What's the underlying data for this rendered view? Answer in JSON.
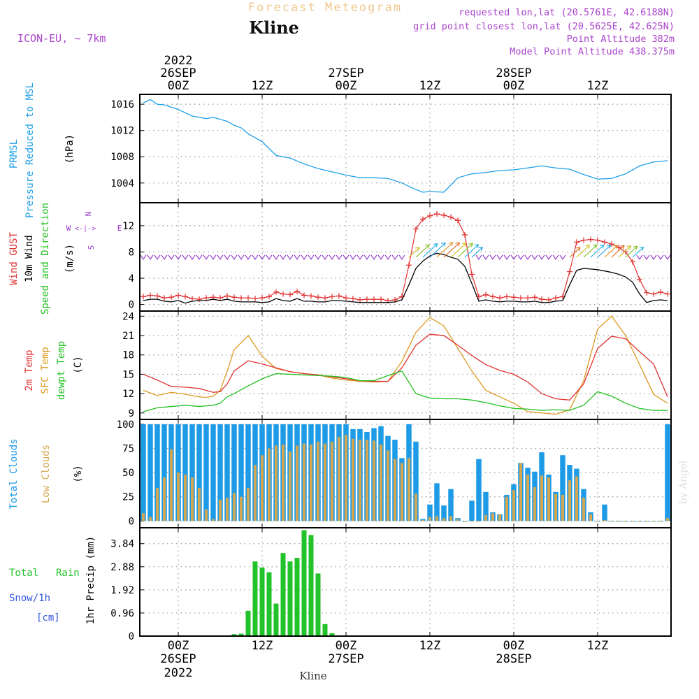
{
  "header": {
    "title": "Forecast Meteogram",
    "location": "Kline",
    "model": "ICON-EU, ~ 7km",
    "requested": "requested lon,lat (20.5761E, 42.6188N)",
    "gridpoint": "grid point closest lon,lat (20.5625E, 42.625N)",
    "point_alt": "Point Altitude 382m",
    "model_alt": "Model Point Altitude 438.375m",
    "footer": "Kline",
    "credit": "by Angel"
  },
  "colors": {
    "pressure": "#1fa0e8",
    "gust": "#e03030",
    "wind": "#000000",
    "wind_dir": "#9a3ad0",
    "temp": "#e03030",
    "sfc": "#dd9a20",
    "dewpt": "#20c020",
    "cloud_total": "#1e9be6",
    "cloud_low": "#d3a752",
    "rain": "#22c22a",
    "snow": "#3355dd",
    "title": "#f0c890",
    "info": "#aa44cc"
  },
  "time_axis": {
    "top_year": "2022",
    "labels": [
      {
        "t": 0,
        "hour": "00Z",
        "date": "26SEP",
        "year": "2022"
      },
      {
        "t": 12,
        "hour": "12Z",
        "date": "",
        "year": ""
      },
      {
        "t": 24,
        "hour": "00Z",
        "date": "27SEP",
        "year": ""
      },
      {
        "t": 36,
        "hour": "12Z",
        "date": "",
        "year": ""
      },
      {
        "t": 48,
        "hour": "00Z",
        "date": "28SEP",
        "year": ""
      },
      {
        "t": 60,
        "hour": "12Z",
        "date": "",
        "year": ""
      }
    ],
    "range_hours": [
      -5.5,
      70.5
    ]
  },
  "chart_data": [
    {
      "type": "line",
      "panel": "pressure",
      "ylabel": "(hPa)",
      "side_labels": [
        "PRMSL",
        "Pressure Reduced to MSL"
      ],
      "yticks": [
        1004,
        1008,
        1012,
        1016
      ],
      "ylim": [
        1001,
        1017.5
      ],
      "grid": true,
      "x_hours": [
        -5,
        -4,
        -3,
        -2,
        0,
        2,
        3,
        4,
        5,
        6,
        7,
        8,
        9,
        10,
        12,
        14,
        16,
        18,
        20,
        22,
        24,
        26,
        28,
        30,
        32,
        34,
        35,
        36,
        38,
        40,
        42,
        44,
        46,
        48,
        50,
        52,
        54,
        56,
        58,
        60,
        62,
        64,
        66,
        68,
        70
      ],
      "values": [
        1016.2,
        1016.7,
        1016.0,
        1015.9,
        1015.2,
        1014.2,
        1014.0,
        1013.8,
        1014.0,
        1013.7,
        1013.4,
        1012.8,
        1012.4,
        1011.5,
        1010.3,
        1008.2,
        1007.8,
        1006.9,
        1006.2,
        1005.7,
        1005.2,
        1004.8,
        1004.8,
        1004.7,
        1004.0,
        1003.0,
        1002.6,
        1002.7,
        1002.6,
        1004.8,
        1005.4,
        1005.6,
        1005.9,
        1006.0,
        1006.3,
        1006.6,
        1006.3,
        1006.1,
        1005.3,
        1004.6,
        1004.7,
        1005.4,
        1006.6,
        1007.2,
        1007.4
      ],
      "series": [
        {
          "name": "PRMSL",
          "values_ref": "values"
        }
      ]
    },
    {
      "type": "line",
      "panel": "wind",
      "ylabel": "(m/s)",
      "side_labels": [
        "Wind GUST",
        "10m Wind",
        "Speed and Direction"
      ],
      "compass": [
        "N",
        "W",
        "E",
        "S"
      ],
      "yticks": [
        0,
        4,
        8,
        12
      ],
      "ylim": [
        -1,
        15.5
      ],
      "grid": true,
      "x_hours": [
        -5,
        -4,
        -3,
        -2,
        -1,
        0,
        1,
        2,
        3,
        4,
        5,
        6,
        7,
        8,
        9,
        10,
        11,
        12,
        13,
        14,
        15,
        16,
        17,
        18,
        19,
        20,
        21,
        22,
        23,
        24,
        25,
        26,
        27,
        28,
        29,
        30,
        31,
        32,
        33,
        34,
        35,
        36,
        37,
        38,
        39,
        40,
        41,
        42,
        43,
        44,
        45,
        46,
        47,
        48,
        49,
        50,
        51,
        52,
        53,
        54,
        55,
        56,
        57,
        58,
        59,
        60,
        61,
        62,
        63,
        64,
        65,
        66,
        67,
        68,
        69,
        70
      ],
      "series": [
        {
          "name": "Wind GUST",
          "values": [
            1.2,
            1.4,
            1.3,
            1.0,
            1.1,
            1.4,
            1.2,
            0.9,
            0.8,
            1.0,
            1.1,
            1.0,
            1.3,
            1.1,
            1.0,
            1.0,
            0.9,
            1.0,
            1.2,
            1.9,
            1.6,
            1.5,
            2.0,
            1.4,
            1.3,
            1.1,
            1.0,
            1.2,
            1.3,
            1.0,
            0.9,
            0.7,
            0.8,
            0.8,
            0.8,
            0.6,
            0.7,
            1.2,
            6.0,
            11.5,
            13.0,
            13.5,
            13.8,
            13.6,
            13.3,
            12.8,
            10.6,
            4.6,
            1.2,
            1.5,
            1.2,
            1.0,
            1.2,
            1.1,
            1.0,
            1.0,
            1.1,
            0.8,
            0.7,
            1.0,
            1.2,
            5.0,
            9.5,
            9.8,
            9.9,
            9.8,
            9.5,
            9.2,
            8.7,
            8.0,
            6.5,
            3.8,
            1.8,
            1.6,
            1.9,
            1.6
          ]
        },
        {
          "name": "10m Wind",
          "values": [
            0.6,
            0.8,
            0.8,
            0.5,
            0.4,
            0.6,
            0.2,
            0.5,
            0.6,
            0.6,
            0.8,
            0.6,
            0.8,
            0.5,
            0.4,
            0.4,
            0.4,
            0.3,
            0.4,
            0.9,
            0.6,
            0.5,
            0.9,
            0.5,
            0.5,
            0.4,
            0.4,
            0.6,
            0.6,
            0.5,
            0.4,
            0.3,
            0.3,
            0.3,
            0.3,
            0.3,
            0.4,
            0.7,
            3.0,
            5.5,
            6.6,
            7.4,
            7.8,
            7.6,
            7.2,
            6.9,
            5.8,
            3.2,
            0.5,
            0.7,
            0.5,
            0.4,
            0.5,
            0.5,
            0.4,
            0.4,
            0.5,
            0.3,
            0.3,
            0.5,
            0.6,
            3.0,
            5.2,
            5.5,
            5.4,
            5.3,
            5.1,
            4.9,
            4.6,
            4.2,
            3.4,
            1.6,
            0.3,
            0.6,
            0.7,
            0.6
          ]
        },
        {
          "name": "Speed and Direction",
          "arrow_level": 7.2
        }
      ]
    },
    {
      "type": "line",
      "panel": "temperature",
      "ylabel": "(C)",
      "side_labels": [
        "2m Temp",
        "SFC Temp",
        "dewpt Temp"
      ],
      "yticks": [
        9,
        12,
        15,
        18,
        21,
        24
      ],
      "ylim": [
        8,
        24.8
      ],
      "grid": true,
      "x_hours": [
        -5,
        -3,
        -1,
        1,
        3,
        4,
        5,
        6,
        7,
        8,
        10,
        12,
        14,
        16,
        18,
        20,
        22,
        24,
        26,
        28,
        30,
        32,
        34,
        36,
        38,
        40,
        42,
        44,
        46,
        48,
        50,
        52,
        54,
        56,
        58,
        60,
        62,
        64,
        66,
        68,
        70
      ],
      "series": [
        {
          "name": "2m Temp",
          "values": [
            15.0,
            14.1,
            13.1,
            13.0,
            12.8,
            12.5,
            12.2,
            12.3,
            13.5,
            15.5,
            17.1,
            16.6,
            16.0,
            15.4,
            15.1,
            14.9,
            14.6,
            14.3,
            14.0,
            13.9,
            13.9,
            16.0,
            19.5,
            21.2,
            21.0,
            19.5,
            17.9,
            16.5,
            15.6,
            15.0,
            13.8,
            12.0,
            11.2,
            11.0,
            13.5,
            19.0,
            20.9,
            20.5,
            18.5,
            16.6,
            11.5
          ]
        },
        {
          "name": "SFC Temp",
          "values": [
            12.5,
            11.7,
            12.2,
            11.9,
            11.5,
            11.4,
            11.6,
            12.5,
            15.5,
            18.8,
            21.0,
            17.8,
            15.9,
            15.4,
            15.1,
            14.9,
            14.4,
            14.1,
            13.9,
            13.8,
            13.9,
            17.0,
            21.5,
            23.8,
            22.5,
            19.0,
            15.5,
            12.5,
            11.5,
            10.5,
            9.2,
            9.0,
            8.8,
            9.5,
            14.0,
            22.0,
            24.0,
            21.0,
            16.5,
            11.9,
            10.5
          ]
        },
        {
          "name": "dewpt Temp",
          "values": [
            9.2,
            9.8,
            10.0,
            10.2,
            10.0,
            10.1,
            10.2,
            10.5,
            11.5,
            12.0,
            13.2,
            14.3,
            15.1,
            15.0,
            14.9,
            14.8,
            14.7,
            14.5,
            14.0,
            14.0,
            14.8,
            15.5,
            12.0,
            11.3,
            11.2,
            11.2,
            11.0,
            10.6,
            10.1,
            9.7,
            9.6,
            9.4,
            9.5,
            9.4,
            10.2,
            12.3,
            11.6,
            10.5,
            9.7,
            9.4,
            9.4
          ]
        }
      ]
    },
    {
      "type": "bar",
      "panel": "clouds",
      "ylabel": "(%)",
      "side_labels": [
        "Total Clouds",
        "Low Clouds"
      ],
      "yticks": [
        0,
        25,
        50,
        75,
        100
      ],
      "ylim": [
        -7,
        105
      ],
      "grid": true,
      "x_hours": [
        -5,
        -4,
        -3,
        -2,
        -1,
        0,
        1,
        2,
        3,
        4,
        5,
        6,
        7,
        8,
        9,
        10,
        11,
        12,
        13,
        14,
        15,
        16,
        17,
        18,
        19,
        20,
        21,
        22,
        23,
        24,
        25,
        26,
        27,
        28,
        29,
        30,
        31,
        32,
        33,
        34,
        35,
        36,
        37,
        38,
        39,
        40,
        41,
        42,
        43,
        44,
        45,
        46,
        47,
        48,
        49,
        50,
        51,
        52,
        53,
        54,
        55,
        56,
        57,
        58,
        59,
        60,
        61,
        62,
        63,
        64,
        65,
        66,
        67,
        68,
        69,
        70
      ],
      "series": [
        {
          "name": "Total Clouds",
          "values": [
            100,
            100,
            100,
            100,
            100,
            100,
            100,
            100,
            100,
            100,
            100,
            100,
            100,
            100,
            100,
            100,
            100,
            100,
            100,
            100,
            100,
            100,
            100,
            100,
            100,
            100,
            100,
            100,
            100,
            100,
            95,
            95,
            92,
            96,
            98,
            88,
            84,
            65,
            100,
            82,
            2,
            17,
            39,
            16,
            33,
            3,
            0,
            21,
            64,
            30,
            9,
            7,
            27,
            38,
            60,
            55,
            51,
            71,
            48,
            30,
            68,
            58,
            54,
            33,
            9,
            0,
            17,
            0,
            0,
            0,
            0,
            0,
            0,
            0,
            0,
            100
          ]
        },
        {
          "name": "Low Clouds",
          "values": [
            8,
            4,
            34,
            45,
            74,
            50,
            48,
            45,
            34,
            12,
            2,
            22,
            24,
            29,
            25,
            34,
            58,
            68,
            75,
            78,
            79,
            72,
            78,
            80,
            79,
            82,
            80,
            82,
            87,
            89,
            85,
            84,
            84,
            83,
            79,
            73,
            64,
            60,
            65,
            28,
            1,
            4,
            5,
            3,
            5,
            2,
            0,
            0,
            0,
            6,
            8,
            7,
            25,
            32,
            60,
            48,
            35,
            47,
            45,
            28,
            27,
            42,
            46,
            24,
            7,
            0,
            1,
            0,
            0,
            0,
            0,
            0,
            0,
            0,
            0,
            3
          ]
        }
      ]
    },
    {
      "type": "bar",
      "panel": "precipitation",
      "ylabel": "1hr Precip (mm)",
      "side_labels": [
        "Total",
        "Rain",
        "Snow/1h",
        "[cm]"
      ],
      "yticks": [
        0,
        0.96,
        1.92,
        2.88,
        3.84
      ],
      "ytick_labels": [
        "0",
        "0.96",
        "1.92",
        "2.88",
        "3.84"
      ],
      "ylim": [
        0,
        4.5
      ],
      "grid": true,
      "x_hours": [
        7,
        8,
        9,
        10,
        11,
        12,
        13,
        14,
        15,
        16,
        17,
        18,
        19,
        20,
        21,
        22,
        23,
        24,
        25
      ],
      "series": [
        {
          "name": "Total Rain",
          "values": [
            0.0,
            0.08,
            0.1,
            1.05,
            3.1,
            2.85,
            2.65,
            1.35,
            3.45,
            3.1,
            3.25,
            4.4,
            4.2,
            2.6,
            0.5,
            0.12,
            0,
            0,
            0
          ]
        },
        {
          "name": "Snow/1h",
          "values": [
            0,
            0,
            0,
            0,
            0,
            0,
            0,
            0,
            0,
            0,
            0,
            0,
            0,
            0,
            0,
            0,
            0,
            0,
            0
          ]
        }
      ]
    }
  ]
}
